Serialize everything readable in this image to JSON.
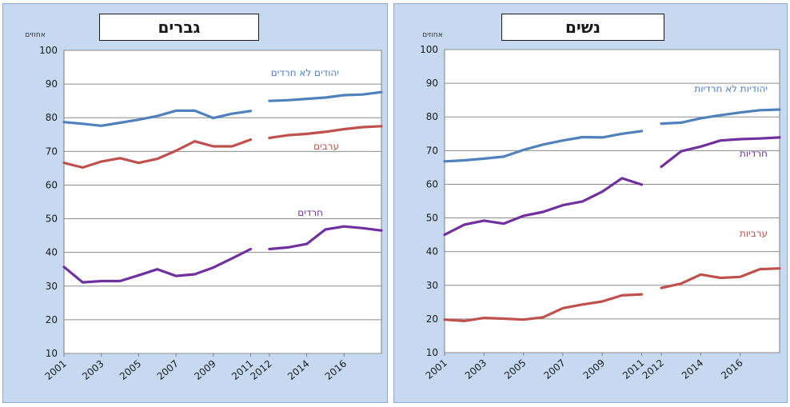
{
  "chart_data": [
    {
      "type": "line",
      "title": "גברים",
      "ylabel": "אחוזים",
      "ylim": [
        10,
        100
      ],
      "yticks": [
        10,
        20,
        30,
        40,
        50,
        60,
        70,
        80,
        90,
        100
      ],
      "xlim": [
        2001,
        2018
      ],
      "xticks": [
        "2001",
        "2003",
        "2005",
        "2007",
        "2009",
        "2011",
        "2012",
        "2014",
        "2016"
      ],
      "grid": true,
      "series": [
        {
          "name": "יהודים לא חרדים",
          "color": "#4f81bd",
          "segments": [
            {
              "x": [
                2001,
                2002,
                2003,
                2004,
                2005,
                2006,
                2007,
                2008,
                2009,
                2010,
                2011
              ],
              "y": [
                78.7,
                78.2,
                77.6,
                78.5,
                79.4,
                80.5,
                82.1,
                82.1,
                79.9,
                81.2,
                82.0
              ]
            },
            {
              "x": [
                2012,
                2013,
                2014,
                2015,
                2016,
                2017,
                2018
              ],
              "y": [
                85.0,
                85.2,
                85.6,
                86.0,
                86.7,
                86.9,
                87.6
              ]
            }
          ]
        },
        {
          "name": "ערבים",
          "color": "#c0504d",
          "segments": [
            {
              "x": [
                2001,
                2002,
                2003,
                2004,
                2005,
                2006,
                2007,
                2008,
                2009,
                2010,
                2011
              ],
              "y": [
                66.6,
                65.2,
                67.0,
                68.0,
                66.6,
                67.8,
                70.2,
                73.0,
                71.5,
                71.5,
                73.5
              ]
            },
            {
              "x": [
                2012,
                2013,
                2014,
                2015,
                2016,
                2017,
                2018
              ],
              "y": [
                74.0,
                74.8,
                75.2,
                75.8,
                76.6,
                77.2,
                77.5
              ]
            }
          ]
        },
        {
          "name": "חרדים",
          "color": "#7030a0",
          "segments": [
            {
              "x": [
                2001,
                2002,
                2003,
                2004,
                2005,
                2006,
                2007,
                2008,
                2009,
                2010,
                2011
              ],
              "y": [
                35.7,
                31.1,
                31.5,
                31.5,
                33.2,
                35.0,
                33.0,
                33.5,
                35.5,
                38.2,
                41.0
              ]
            },
            {
              "x": [
                2012,
                2013,
                2014,
                2015,
                2016,
                2017,
                2018
              ],
              "y": [
                41.0,
                41.5,
                42.5,
                46.8,
                47.7,
                47.2,
                46.5
              ]
            }
          ]
        }
      ]
    },
    {
      "type": "line",
      "title": "נשים",
      "ylabel": "אחוזים",
      "ylim": [
        10,
        100
      ],
      "yticks": [
        10,
        20,
        30,
        40,
        50,
        60,
        70,
        80,
        90,
        100
      ],
      "xlim": [
        2001,
        2018
      ],
      "xticks": [
        "2001",
        "2003",
        "2005",
        "2007",
        "2009",
        "2011",
        "2012",
        "2014",
        "2016"
      ],
      "grid": true,
      "series": [
        {
          "name": "יהודיות לא חרדיות",
          "color": "#4f81bd",
          "segments": [
            {
              "x": [
                2001,
                2002,
                2003,
                2004,
                2005,
                2006,
                2007,
                2008,
                2009,
                2010,
                2011
              ],
              "y": [
                66.8,
                67.1,
                67.6,
                68.2,
                70.2,
                71.8,
                73.0,
                74.0,
                73.9,
                75.0,
                75.8
              ]
            },
            {
              "x": [
                2012,
                2013,
                2014,
                2015,
                2016,
                2017,
                2018
              ],
              "y": [
                78.0,
                78.3,
                79.6,
                80.5,
                81.3,
                82.0,
                82.2
              ]
            }
          ]
        },
        {
          "name": "חרדיות",
          "color": "#7030a0",
          "segments": [
            {
              "x": [
                2001,
                2002,
                2003,
                2004,
                2005,
                2006,
                2007,
                2008,
                2009,
                2010,
                2011
              ],
              "y": [
                45.0,
                48.0,
                49.2,
                48.3,
                50.6,
                51.8,
                53.8,
                54.9,
                57.8,
                61.8,
                59.9
              ]
            },
            {
              "x": [
                2012,
                2013,
                2014,
                2015,
                2016,
                2017,
                2018
              ],
              "y": [
                65.2,
                69.8,
                71.2,
                73.0,
                73.4,
                73.6,
                73.9
              ]
            }
          ]
        },
        {
          "name": "ערביות",
          "color": "#c0504d",
          "segments": [
            {
              "x": [
                2001,
                2002,
                2003,
                2004,
                2005,
                2006,
                2007,
                2008,
                2009,
                2010,
                2011
              ],
              "y": [
                19.8,
                19.4,
                20.3,
                20.1,
                19.8,
                20.5,
                23.2,
                24.3,
                25.2,
                27.0,
                27.3
              ]
            },
            {
              "x": [
                2012,
                2013,
                2014,
                2015,
                2016,
                2017,
                2018
              ],
              "y": [
                29.2,
                30.5,
                33.2,
                32.2,
                32.5,
                34.8,
                35.0
              ]
            }
          ]
        }
      ]
    }
  ]
}
